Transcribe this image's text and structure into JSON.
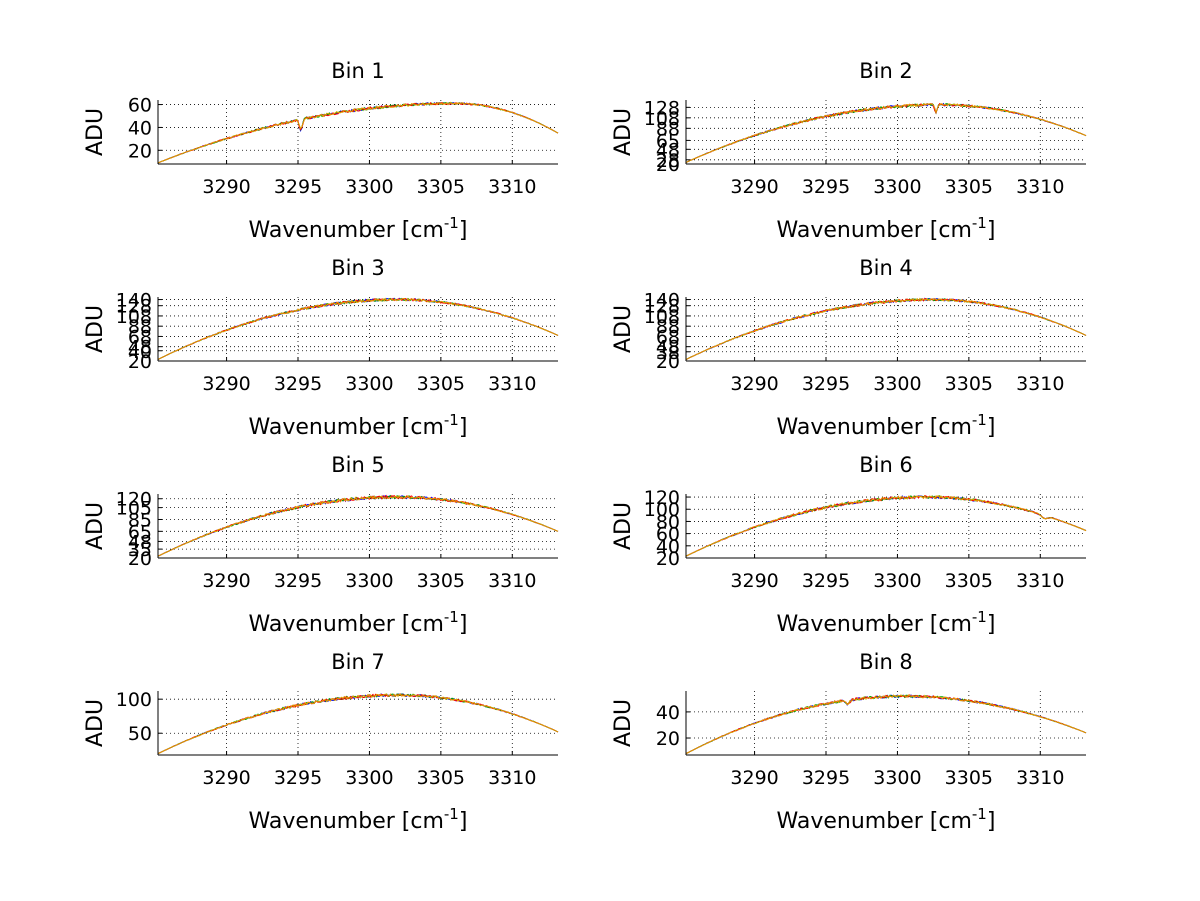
{
  "figure": {
    "background": "#ffffff",
    "layout": "4 rows x 2 columns",
    "series_colors": [
      "#0000ff",
      "#00a000",
      "#ff0000",
      "#e0a000"
    ]
  },
  "chart_data": [
    {
      "type": "line",
      "title": "Bin 1",
      "xlabel": "Wavenumber [cm",
      "xlabel_sup": "-1",
      "xlabel_end": "]",
      "ylabel": "ADU",
      "xlim": [
        3285.2,
        3313.2
      ],
      "ylim": [
        8,
        64
      ],
      "xticks": [
        3290,
        3295,
        3300,
        3305,
        3310
      ],
      "yticks": [
        20,
        40,
        60
      ],
      "grid": true,
      "curve": {
        "start": 9,
        "peak": 61,
        "peak_x": 3306,
        "end": 35,
        "noise": 1.2
      },
      "features": [
        {
          "x": 3295.2,
          "depth": 9,
          "width": 0.15
        }
      ]
    },
    {
      "type": "line",
      "title": "Bin 2",
      "xlabel": "Wavenumber [cm",
      "xlabel_sup": "-1",
      "xlabel_end": "]",
      "ylabel": "ADU",
      "xlim": [
        3285.2,
        3313.2
      ],
      "ylim": [
        20,
        142
      ],
      "xticks": [
        3290,
        3295,
        3300,
        3305,
        3310
      ],
      "yticks": [
        20,
        28,
        48,
        65,
        88,
        108,
        128
      ],
      "grid": true,
      "curve": {
        "start": 23,
        "peak": 133,
        "peak_x": 3303,
        "end": 74,
        "noise": 2.5
      },
      "features": [
        {
          "x": 3302.7,
          "depth": 14,
          "width": 0.12
        }
      ]
    },
    {
      "type": "line",
      "title": "Bin 3",
      "xlabel": "Wavenumber [cm",
      "xlabel_sup": "-1",
      "xlabel_end": "]",
      "ylabel": "ADU",
      "xlim": [
        3285.2,
        3313.2
      ],
      "ylim": [
        20,
        145
      ],
      "xticks": [
        3290,
        3295,
        3300,
        3305,
        3310
      ],
      "yticks": [
        20,
        40,
        48,
        68,
        88,
        108,
        128,
        140
      ],
      "grid": true,
      "curve": {
        "start": 23,
        "peak": 140,
        "peak_x": 3302,
        "end": 70,
        "noise": 2.5
      },
      "features": []
    },
    {
      "type": "line",
      "title": "Bin 4",
      "xlabel": "Wavenumber [cm",
      "xlabel_sup": "-1",
      "xlabel_end": "]",
      "ylabel": "ADU",
      "xlim": [
        3285.2,
        3313.2
      ],
      "ylim": [
        20,
        145
      ],
      "xticks": [
        3290,
        3295,
        3300,
        3305,
        3310
      ],
      "yticks": [
        20,
        38,
        48,
        68,
        88,
        108,
        128,
        140
      ],
      "grid": true,
      "curve": {
        "start": 23,
        "peak": 140,
        "peak_x": 3302.5,
        "end": 70,
        "noise": 2.5
      },
      "features": []
    },
    {
      "type": "line",
      "title": "Bin 5",
      "xlabel": "Wavenumber [cm",
      "xlabel_sup": "-1",
      "xlabel_end": "]",
      "ylabel": "ADU",
      "xlim": [
        3285.2,
        3313.2
      ],
      "ylim": [
        20,
        128
      ],
      "xticks": [
        3290,
        3295,
        3300,
        3305,
        3310
      ],
      "yticks": [
        20,
        35,
        48,
        65,
        85,
        105,
        120
      ],
      "grid": true,
      "curve": {
        "start": 23,
        "peak": 123,
        "peak_x": 3302,
        "end": 65,
        "noise": 2.5
      },
      "features": []
    },
    {
      "type": "line",
      "title": "Bin 6",
      "xlabel": "Wavenumber [cm",
      "xlabel_sup": "-1",
      "xlabel_end": "]",
      "ylabel": "ADU",
      "xlim": [
        3285.2,
        3313.2
      ],
      "ylim": [
        20,
        125
      ],
      "xticks": [
        3290,
        3295,
        3300,
        3305,
        3310
      ],
      "yticks": [
        20,
        40,
        60,
        80,
        100,
        120
      ],
      "grid": true,
      "curve": {
        "start": 23,
        "peak": 120,
        "peak_x": 3302,
        "end": 65,
        "noise": 2.5
      },
      "features": [
        {
          "x": 3310.3,
          "depth": 5,
          "width": 0.3
        }
      ]
    },
    {
      "type": "line",
      "title": "Bin 7",
      "xlabel": "Wavenumber [cm",
      "xlabel_sup": "-1",
      "xlabel_end": "]",
      "ylabel": "ADU",
      "xlim": [
        3285.2,
        3313.2
      ],
      "ylim": [
        18,
        112
      ],
      "xticks": [
        3290,
        3295,
        3300,
        3305,
        3310
      ],
      "yticks": [
        50,
        100
      ],
      "grid": true,
      "curve": {
        "start": 20,
        "peak": 106,
        "peak_x": 3302,
        "end": 52,
        "noise": 2
      },
      "features": []
    },
    {
      "type": "line",
      "title": "Bin 8",
      "xlabel": "Wavenumber [cm",
      "xlabel_sup": "-1",
      "xlabel_end": "]",
      "ylabel": "ADU",
      "xlim": [
        3285.2,
        3313.2
      ],
      "ylim": [
        7,
        56
      ],
      "xticks": [
        3290,
        3295,
        3300,
        3305,
        3310
      ],
      "yticks": [
        20,
        40
      ],
      "grid": true,
      "curve": {
        "start": 8,
        "peak": 52,
        "peak_x": 3300.5,
        "end": 24,
        "noise": 1
      },
      "features": [
        {
          "x": 3296.5,
          "depth": 3,
          "width": 0.2
        }
      ]
    }
  ]
}
